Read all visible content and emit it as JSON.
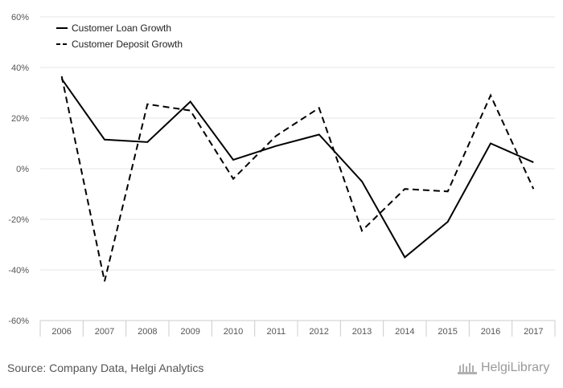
{
  "chart_data": {
    "type": "line",
    "title": "",
    "xlabel": "",
    "ylabel": "",
    "categories": [
      "2006",
      "2007",
      "2008",
      "2009",
      "2010",
      "2011",
      "2012",
      "2013",
      "2014",
      "2015",
      "2016",
      "2017"
    ],
    "series": [
      {
        "name": "Customer Loan Growth",
        "style": "solid",
        "color": "#000000",
        "values": [
          35.5,
          11.5,
          10.5,
          26.5,
          3.5,
          9.0,
          13.5,
          -5.0,
          -35.0,
          -21.0,
          10.0,
          2.5
        ]
      },
      {
        "name": "Customer Deposit Growth",
        "style": "dashed",
        "color": "#000000",
        "values": [
          36.5,
          -44.5,
          25.5,
          23.0,
          -4.0,
          13.0,
          24.0,
          -24.5,
          -8.0,
          -9.0,
          29.0,
          -8.0
        ]
      }
    ],
    "ylim": [
      -60,
      60
    ],
    "yticks": [
      60,
      40,
      20,
      0,
      -20,
      -40,
      -60
    ],
    "ytick_labels": [
      "60%",
      "40%",
      "20%",
      "0%",
      "-20%",
      "-40%",
      "-60%"
    ],
    "grid": true,
    "legend_position": "top-left"
  },
  "footer": {
    "source": "Source: Company Data, Helgi Analytics",
    "logo_text": "HelgiLibrary"
  },
  "colors": {
    "grid": "#e6e6e6",
    "axis": "#cccccc",
    "label": "#555555"
  }
}
